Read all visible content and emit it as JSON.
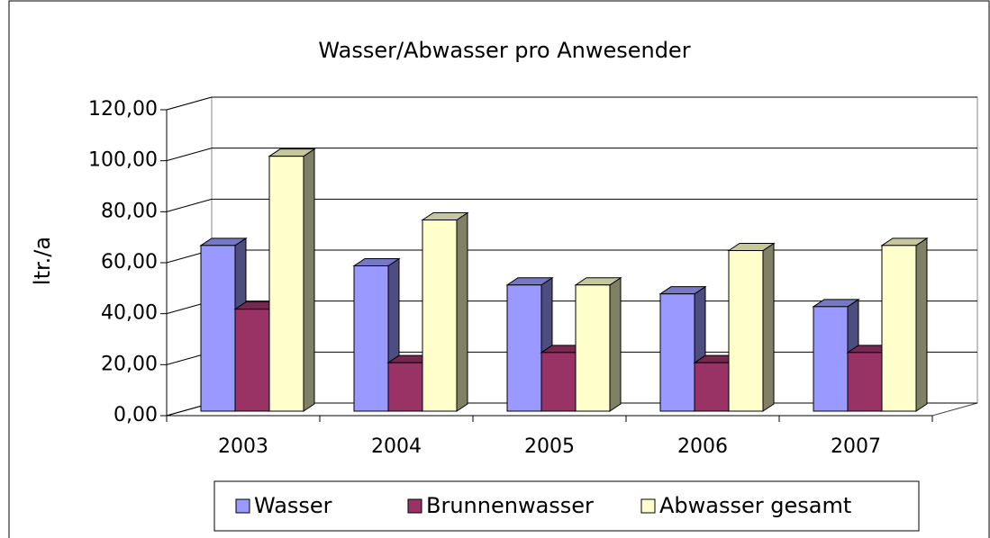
{
  "chart_data": {
    "type": "bar3d",
    "title": "Wasser/Abwasser pro Anwesender",
    "y_label": "ltr./a",
    "categories": [
      "2003",
      "2004",
      "2005",
      "2006",
      "2007"
    ],
    "series": [
      {
        "name": "Wasser",
        "color": "#9999ff",
        "values": [
          65,
          57,
          49.5,
          46,
          41
        ]
      },
      {
        "name": "Brunnenwasser",
        "color": "#993366",
        "values": [
          40,
          19,
          23,
          19,
          23
        ]
      },
      {
        "name": "Abwasser gesamt",
        "color": "#ffffcc",
        "values": [
          100,
          75,
          49.5,
          63,
          65
        ]
      }
    ],
    "ylim": [
      0,
      120
    ],
    "yticks": [
      {
        "value": 0,
        "label": "0,00"
      },
      {
        "value": 20,
        "label": "20,00"
      },
      {
        "value": 40,
        "label": "40,00"
      },
      {
        "value": 60,
        "label": "60,00"
      },
      {
        "value": 80,
        "label": "80,00"
      },
      {
        "value": 100,
        "label": "100,00"
      },
      {
        "value": 120,
        "label": "120,00"
      }
    ],
    "grid": true,
    "legend": "bottom"
  }
}
